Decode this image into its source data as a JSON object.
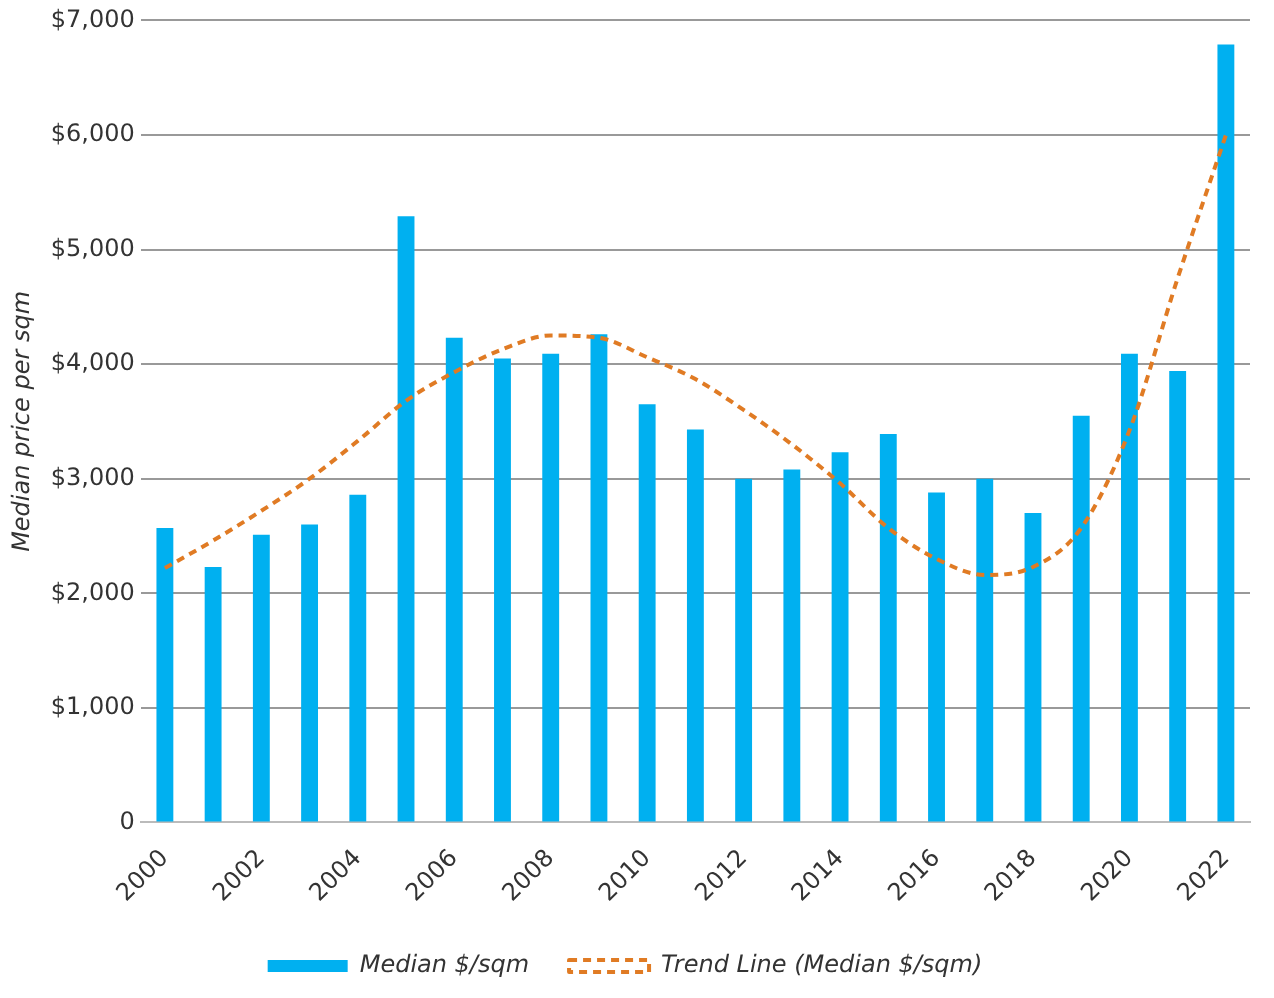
{
  "chart_data": {
    "type": "bar",
    "ylabel": "Median price per sqm",
    "categories": [
      "2000",
      null,
      "2002",
      null,
      "2004",
      null,
      "2006",
      null,
      "2008",
      null,
      "2010",
      null,
      "2012",
      null,
      "2014",
      null,
      "2016",
      null,
      "2018",
      null,
      "2020",
      null,
      "2022"
    ],
    "series": [
      {
        "name": "Median $/sqm",
        "color": "#00b0f0",
        "values": [
          2570,
          2230,
          2510,
          2600,
          2860,
          5290,
          4230,
          4050,
          4090,
          4260,
          3650,
          3430,
          3000,
          3080,
          3230,
          3390,
          2880,
          3000,
          2700,
          3550,
          4090,
          3940,
          6790
        ]
      },
      {
        "name": "Trend Line (Median $/sqm)",
        "type": "line",
        "color": "#e07b24",
        "line_style": "dashed",
        "marker": "none",
        "values": [
          2220,
          2460,
          2720,
          3000,
          3330,
          3680,
          3930,
          4130,
          4250,
          4230,
          4060,
          3870,
          3600,
          3300,
          2960,
          2570,
          2300,
          2160,
          2230,
          2570,
          3420,
          4750,
          6000
        ]
      }
    ],
    "ylim": [
      0,
      7000
    ],
    "yticks": [
      {
        "value": 0,
        "label": "0"
      },
      {
        "value": 1000,
        "label": "$1,000"
      },
      {
        "value": 2000,
        "label": "$2,000"
      },
      {
        "value": 3000,
        "label": "$3,000"
      },
      {
        "value": 4000,
        "label": "$4,000"
      },
      {
        "value": 5000,
        "label": "$5,000"
      },
      {
        "value": 6000,
        "label": "$6,000"
      },
      {
        "value": 7000,
        "label": "$7,000"
      }
    ],
    "grid": "y",
    "legend": "bottom"
  }
}
